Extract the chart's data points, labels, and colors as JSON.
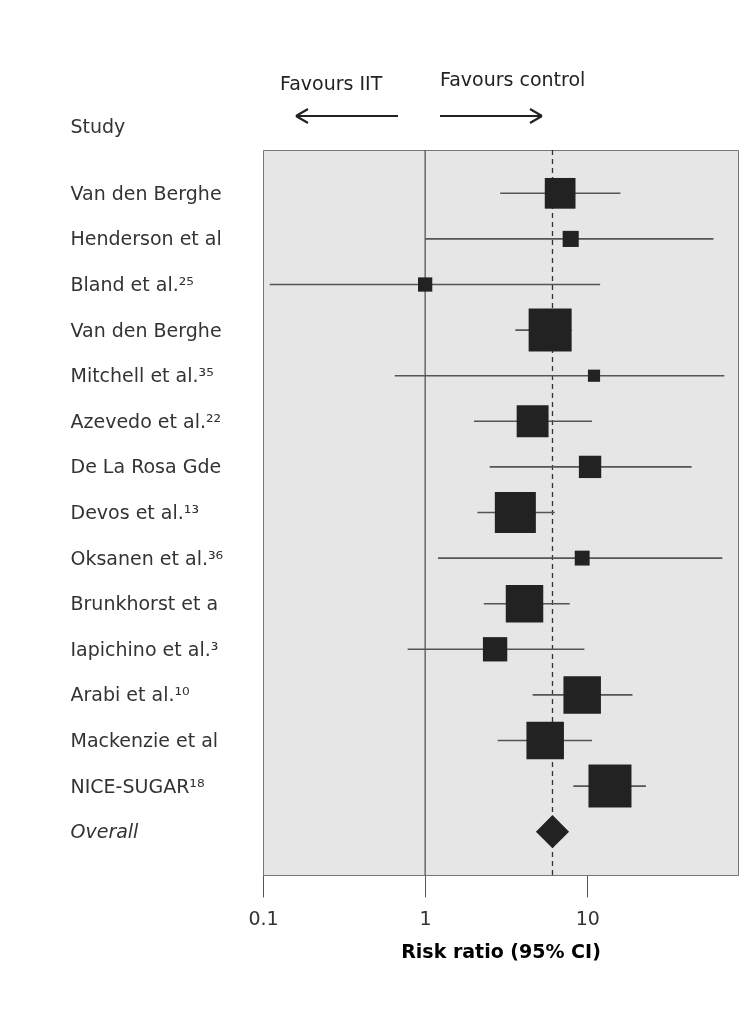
{
  "chart_data": {
    "type": "bubble",
    "orientation": "horizontal",
    "marker": "square",
    "xlabel": "Risk ratio (95% CI)",
    "ylabel": "Study",
    "annotations": [
      "Favours IIT",
      "Favours control"
    ],
    "log": "x",
    "xlim": [
      0.1,
      85
    ],
    "xticks": [
      0.1,
      1,
      10
    ],
    "categories": [
      "Van den Berghe",
      "Henderson et al",
      "Bland et al.²⁵",
      "Van den Berghe",
      "Mitchell et al.³⁵",
      "Azevedo et al.²²",
      "De La Rosa Gde",
      "Devos et al.¹³",
      "Oksanen et al.³⁶",
      "Brunkhorst et a",
      "Iapichino et al.³",
      "Arabi et al.¹⁰",
      "Mackenzie et al",
      "NICE-SUGAR¹⁸",
      "Overall"
    ],
    "series": [
      {
        "color": "#222222",
        "values": [
          6.8,
          7.9,
          1.0,
          5.9,
          11,
          4.6,
          10.4,
          3.6,
          9.3,
          4.1,
          2.7,
          9.3,
          5.5,
          13.8,
          null
        ],
        "errors": [
          [
            2.9,
            16
          ],
          [
            1.0,
            60
          ],
          [
            0.11,
            12
          ],
          [
            3.6,
            8
          ],
          [
            0.65,
            70
          ],
          [
            2.0,
            10.7
          ],
          [
            2.5,
            44
          ],
          [
            2.1,
            6.3
          ],
          [
            1.2,
            68
          ],
          [
            2.3,
            7.8
          ],
          [
            0.78,
            9.6
          ],
          [
            4.6,
            19
          ],
          [
            2.8,
            10.7
          ],
          [
            8.2,
            23
          ],
          null
        ],
        "sizes": [
          0.51,
          0.14,
          0.11,
          1,
          0.08,
          0.55,
          0.27,
          0.91,
          0.12,
          0.76,
          0.32,
          0.76,
          0.76,
          1,
          null
        ]
      },
      {
        "type": "scatter",
        "marker": "diamond",
        "color": "#222222",
        "values": [
          null,
          null,
          null,
          null,
          null,
          null,
          null,
          null,
          null,
          null,
          null,
          null,
          null,
          null,
          6.1
        ]
      }
    ],
    "ref_lines": [
      {
        "axis": "x",
        "value": 1,
        "line_style": "solid",
        "color": "#555555"
      },
      {
        "axis": "x",
        "value": 6.1,
        "line_style": "dashed",
        "color": "#333333"
      }
    ]
  }
}
